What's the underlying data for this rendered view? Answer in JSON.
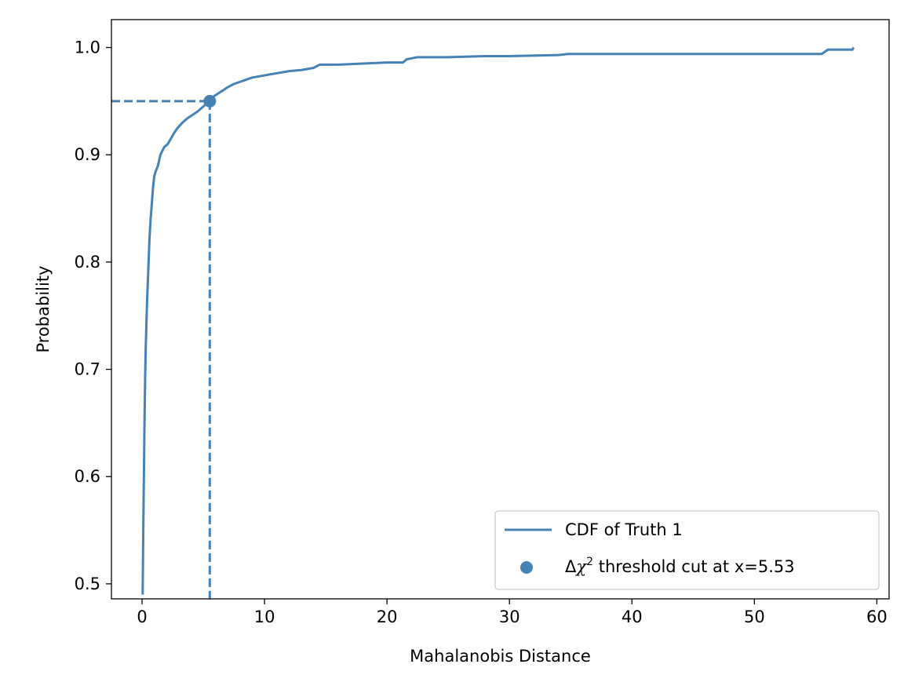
{
  "chart_data": {
    "type": "line",
    "title": "",
    "xlabel": "Mahalanobis Distance",
    "ylabel": "Probability",
    "xlim": [
      -2.5,
      61
    ],
    "ylim": [
      0.486,
      1.026
    ],
    "xticks": [
      0,
      10,
      20,
      30,
      40,
      50,
      60
    ],
    "yticks": [
      0.5,
      0.6,
      0.7,
      0.8,
      0.9,
      1.0
    ],
    "xtick_labels": [
      "0",
      "10",
      "20",
      "30",
      "40",
      "50",
      "60"
    ],
    "ytick_labels": [
      "0.5",
      "0.6",
      "0.7",
      "0.8",
      "0.9",
      "1.0"
    ],
    "grid": false,
    "legend_position": "lower-right",
    "color": "#4682b4",
    "series": [
      {
        "name": "CDF of Truth 1",
        "style": "step-line",
        "x": [
          0.05,
          0.1,
          0.15,
          0.2,
          0.25,
          0.3,
          0.4,
          0.5,
          0.6,
          0.7,
          0.8,
          0.9,
          1.0,
          1.1,
          1.3,
          1.5,
          1.8,
          2.1,
          2.3,
          2.6,
          2.9,
          3.3,
          3.7,
          4.1,
          4.5,
          4.9,
          5.3,
          5.53,
          5.8,
          6.2,
          6.6,
          7.0,
          7.5,
          8.0,
          8.5,
          9.0,
          10.0,
          11.0,
          12.0,
          13.0,
          14.0,
          14.5,
          16.0,
          18.0,
          20.0,
          21.3,
          21.6,
          22.5,
          25.0,
          28.0,
          30.0,
          34.0,
          34.8,
          40.0,
          50.0,
          55.5,
          56.0,
          58.0,
          58.1
        ],
        "y": [
          0.49,
          0.55,
          0.6,
          0.65,
          0.69,
          0.72,
          0.76,
          0.79,
          0.82,
          0.84,
          0.855,
          0.87,
          0.88,
          0.884,
          0.89,
          0.9,
          0.907,
          0.91,
          0.914,
          0.92,
          0.925,
          0.93,
          0.934,
          0.937,
          0.94,
          0.944,
          0.948,
          0.95,
          0.954,
          0.957,
          0.96,
          0.963,
          0.966,
          0.968,
          0.97,
          0.972,
          0.974,
          0.976,
          0.978,
          0.979,
          0.981,
          0.984,
          0.984,
          0.985,
          0.986,
          0.986,
          0.989,
          0.991,
          0.991,
          0.992,
          0.992,
          0.993,
          0.994,
          0.994,
          0.994,
          0.994,
          0.998,
          0.998,
          1.0
        ]
      }
    ],
    "threshold": {
      "label": "Δχ² threshold cut at x=5.53",
      "label_prefix": "Δ",
      "label_symbol": "χ",
      "label_superscript": "2",
      "label_suffix": " threshold cut at x=5.53",
      "x": 5.53,
      "y": 0.95
    }
  }
}
